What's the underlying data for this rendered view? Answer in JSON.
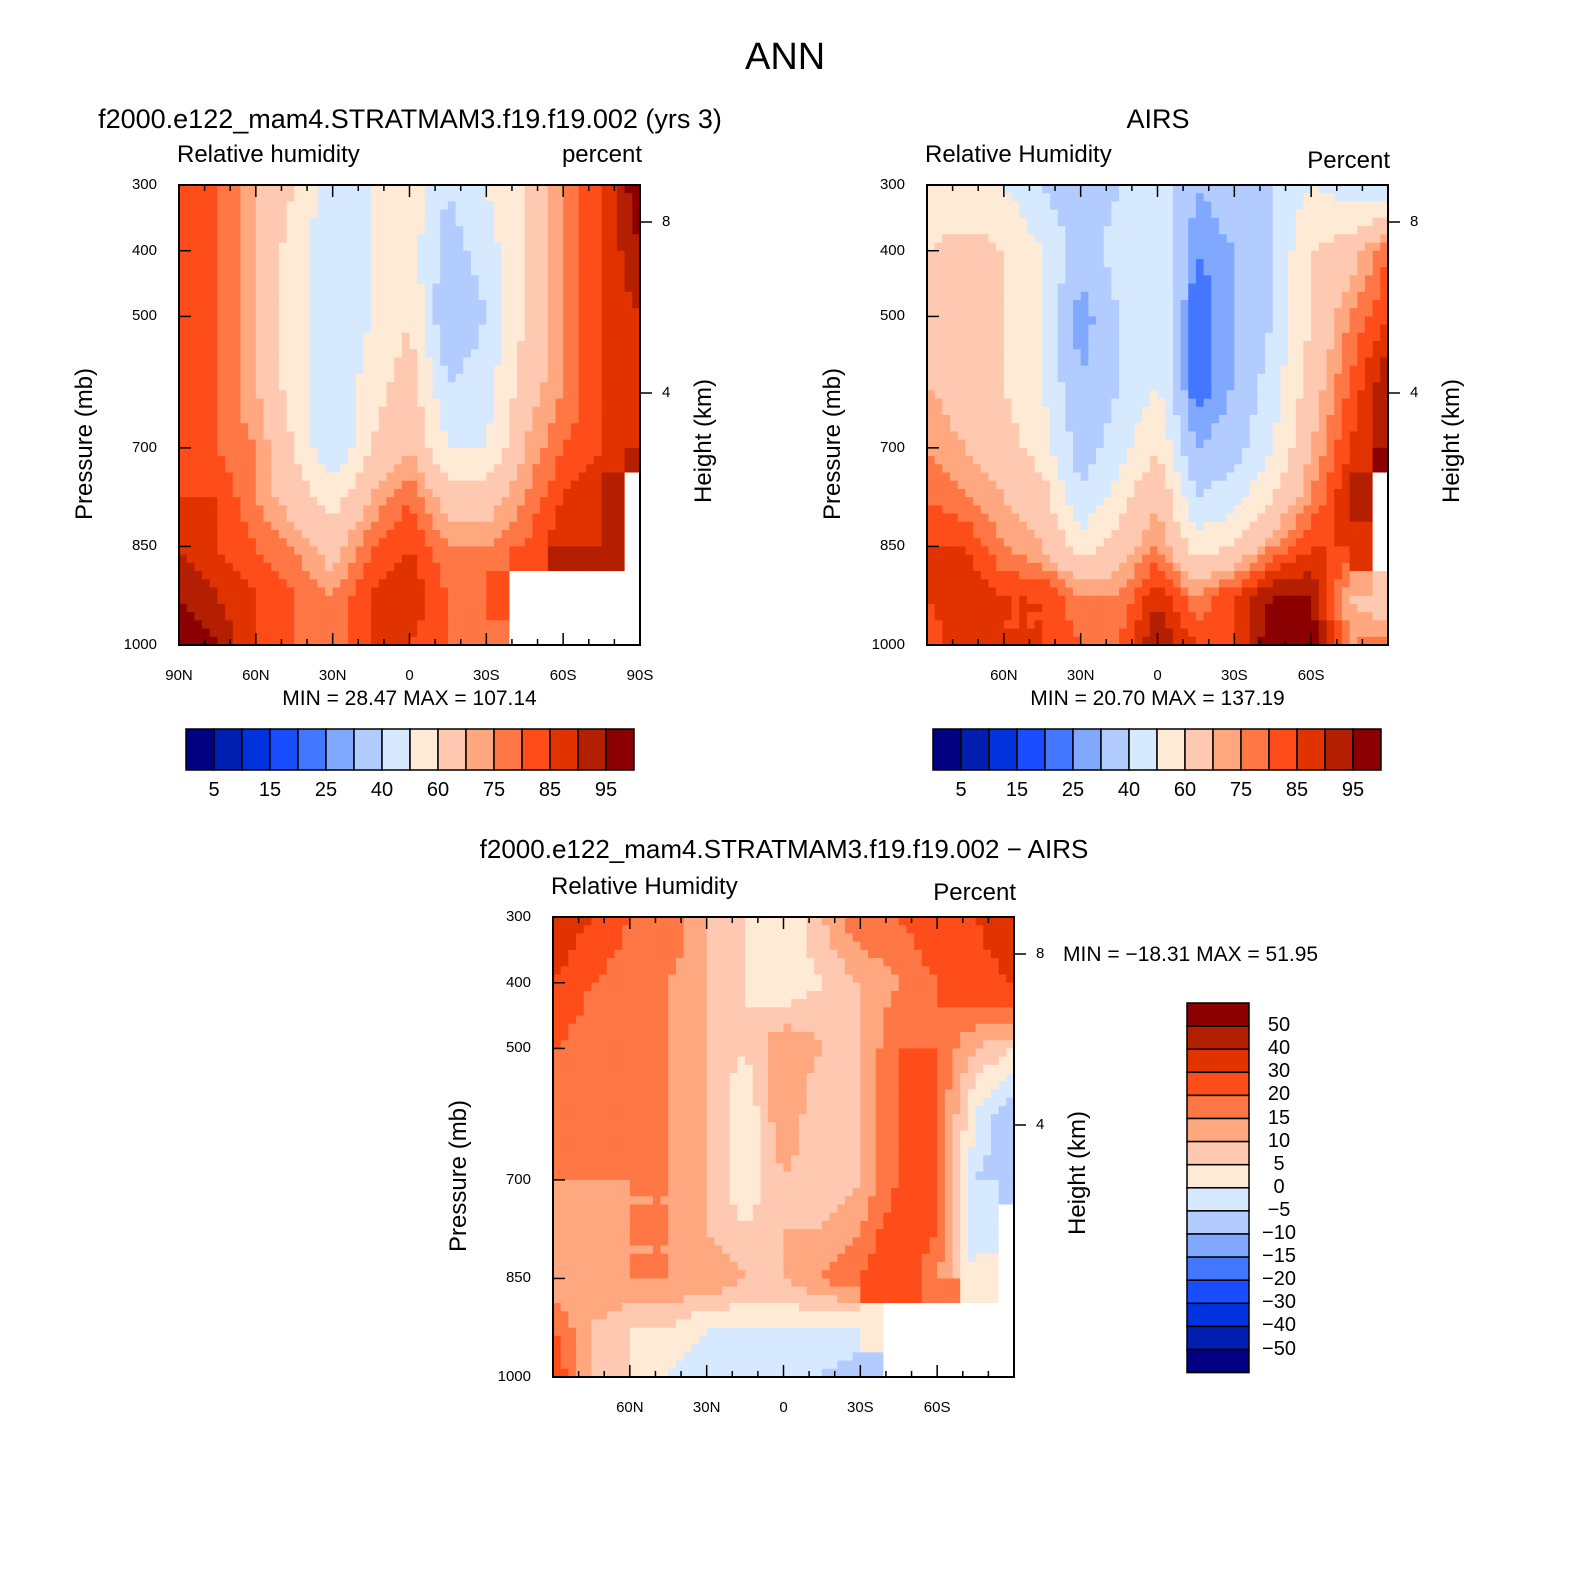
{
  "main_title": "ANN",
  "colors": {
    "abs_palette": [
      "#000080",
      "#001fb0",
      "#0033dd",
      "#1a4dff",
      "#4477ff",
      "#80a8ff",
      "#b3ccff",
      "#d6e9ff",
      "#ffead6",
      "#ffc8b0",
      "#ffa880",
      "#ff7744",
      "#ff4d1a",
      "#e03300",
      "#b31f00",
      "#8b0000"
    ],
    "missing": "#ffffff"
  },
  "chart_data": [
    {
      "type": "heatmap",
      "title": "f2000.e122_mam4.STRATMAM3.f19.f19.002 (yrs 3)",
      "left_label": "Relative humidity",
      "right_label": "percent",
      "ylabel": "Pressure (mb)",
      "ylabel_right": "Height (km)",
      "x": [
        90,
        75,
        60,
        45,
        30,
        15,
        0,
        -15,
        -30,
        -45,
        -60,
        -75,
        -90
      ],
      "y": [
        300,
        400,
        500,
        600,
        700,
        775,
        850,
        925,
        1000
      ],
      "xlim": [
        90,
        -90
      ],
      "ylim": [
        300,
        1000
      ],
      "xticks": [
        "90N",
        "60N",
        "30N",
        "0",
        "30S",
        "60S",
        "90S"
      ],
      "yticks": [
        "300",
        "400",
        "500",
        "700",
        "850",
        "1000"
      ],
      "rticks": [
        "8",
        "4"
      ],
      "min_label": "MIN =   28.47   MAX = 107.14",
      "levels": [
        5,
        10,
        15,
        20,
        25,
        30,
        40,
        50,
        60,
        70,
        75,
        80,
        85,
        90,
        95
      ],
      "colorbar_labels": [
        "5",
        "15",
        "25",
        "40",
        "60",
        "75",
        "85",
        "95"
      ],
      "z": [
        [
          85,
          80,
          70,
          60,
          45,
          50,
          60,
          40,
          50,
          60,
          75,
          85,
          100
        ],
        [
          85,
          80,
          70,
          55,
          40,
          50,
          55,
          35,
          45,
          60,
          75,
          85,
          95
        ],
        [
          85,
          80,
          70,
          55,
          40,
          50,
          60,
          30,
          40,
          60,
          75,
          85,
          90
        ],
        [
          85,
          80,
          70,
          55,
          40,
          55,
          65,
          40,
          45,
          65,
          75,
          85,
          90
        ],
        [
          85,
          80,
          75,
          60,
          40,
          60,
          70,
          50,
          50,
          70,
          80,
          85,
          90
        ],
        [
          85,
          85,
          75,
          65,
          55,
          70,
          80,
          65,
          65,
          75,
          85,
          90,
          null
        ],
        [
          90,
          85,
          80,
          75,
          65,
          80,
          85,
          75,
          75,
          80,
          90,
          90,
          null
        ],
        [
          95,
          90,
          85,
          80,
          75,
          85,
          90,
          80,
          80,
          null,
          null,
          null,
          null
        ],
        [
          100,
          95,
          85,
          80,
          75,
          85,
          85,
          80,
          75,
          null,
          null,
          null,
          null
        ]
      ]
    },
    {
      "type": "heatmap",
      "title": "AIRS",
      "left_label": "Relative Humidity",
      "right_label": "Percent",
      "ylabel": "Pressure (mb)",
      "ylabel_right": "Height (km)",
      "x": [
        90,
        75,
        60,
        45,
        30,
        15,
        0,
        -15,
        -30,
        -45,
        -60,
        -75,
        -90
      ],
      "y": [
        300,
        400,
        500,
        600,
        700,
        775,
        850,
        925,
        1000
      ],
      "xlim": [
        90,
        -90
      ],
      "ylim": [
        300,
        1000
      ],
      "xticks": [
        "",
        "60N",
        "30N",
        "0",
        "30S",
        "60S",
        ""
      ],
      "yticks": [
        "300",
        "400",
        "500",
        "700",
        "850",
        "1000"
      ],
      "rticks": [
        "8",
        "4"
      ],
      "min_label": "MIN =   20.70   MAX = 137.19",
      "levels": [
        5,
        10,
        15,
        20,
        25,
        30,
        40,
        50,
        60,
        70,
        75,
        80,
        85,
        90,
        95
      ],
      "colorbar_labels": [
        "5",
        "15",
        "25",
        "40",
        "60",
        "75",
        "85",
        "95"
      ],
      "z": [
        [
          50,
          50,
          50,
          40,
          30,
          40,
          50,
          30,
          35,
          40,
          50,
          45,
          40
        ],
        [
          60,
          65,
          60,
          50,
          35,
          45,
          50,
          25,
          30,
          40,
          60,
          65,
          80
        ],
        [
          70,
          65,
          60,
          50,
          25,
          40,
          50,
          20,
          30,
          40,
          60,
          75,
          85
        ],
        [
          70,
          65,
          60,
          50,
          30,
          40,
          50,
          20,
          30,
          45,
          65,
          80,
          95
        ],
        [
          75,
          70,
          65,
          55,
          35,
          45,
          60,
          30,
          35,
          50,
          70,
          85,
          95
        ],
        [
          80,
          75,
          70,
          65,
          40,
          55,
          70,
          40,
          45,
          60,
          75,
          90,
          null
        ],
        [
          85,
          85,
          75,
          70,
          55,
          65,
          75,
          55,
          60,
          75,
          85,
          85,
          null
        ],
        [
          85,
          90,
          85,
          85,
          75,
          75,
          90,
          75,
          85,
          95,
          95,
          70,
          60
        ],
        [
          80,
          90,
          85,
          85,
          80,
          80,
          95,
          85,
          85,
          100,
          100,
          75,
          80
        ]
      ]
    },
    {
      "type": "heatmap",
      "title": "f2000.e122_mam4.STRATMAM3.f19.f19.002 − AIRS",
      "left_label": "Relative Humidity",
      "right_label": "Percent",
      "ylabel": "Pressure (mb)",
      "ylabel_right": "Height (km)",
      "x": [
        90,
        75,
        60,
        45,
        30,
        15,
        0,
        -15,
        -30,
        -45,
        -60,
        -75,
        -90
      ],
      "y": [
        300,
        400,
        500,
        600,
        700,
        775,
        850,
        925,
        1000
      ],
      "xlim": [
        90,
        -90
      ],
      "ylim": [
        300,
        1000
      ],
      "xticks": [
        "",
        "60N",
        "30N",
        "0",
        "30S",
        "60S",
        ""
      ],
      "yticks": [
        "300",
        "400",
        "500",
        "700",
        "850",
        "1000"
      ],
      "rticks": [
        "8",
        "4"
      ],
      "min_label": "MIN = −18.31   MAX =   51.95",
      "levels": [
        -50,
        -40,
        -30,
        -20,
        -15,
        -10,
        -5,
        0,
        5,
        10,
        15,
        20,
        30,
        40,
        50
      ],
      "colorbar_labels": [
        "50",
        "40",
        "30",
        "20",
        "15",
        "10",
        "5",
        "0",
        "−5",
        "−10",
        "−15",
        "−20",
        "−30",
        "−40",
        "−50"
      ],
      "z": [
        [
          40,
          30,
          20,
          20,
          10,
          5,
          0,
          10,
          20,
          20,
          25,
          30,
          40
        ],
        [
          30,
          20,
          15,
          15,
          10,
          5,
          0,
          5,
          10,
          15,
          20,
          25,
          30
        ],
        [
          20,
          15,
          15,
          15,
          10,
          5,
          15,
          10,
          10,
          20,
          20,
          10,
          5
        ],
        [
          15,
          15,
          15,
          15,
          10,
          0,
          15,
          5,
          10,
          20,
          20,
          0,
          -10
        ],
        [
          15,
          15,
          15,
          15,
          10,
          0,
          10,
          5,
          10,
          20,
          20,
          -5,
          -10
        ],
        [
          10,
          10,
          15,
          15,
          10,
          5,
          10,
          10,
          15,
          25,
          20,
          -5,
          null
        ],
        [
          10,
          15,
          15,
          15,
          15,
          10,
          10,
          15,
          20,
          25,
          15,
          0,
          null
        ],
        [
          20,
          10,
          5,
          5,
          0,
          0,
          0,
          0,
          0,
          null,
          null,
          null,
          null
        ],
        [
          25,
          10,
          5,
          0,
          -5,
          0,
          -5,
          -5,
          -10,
          null,
          null,
          null,
          null
        ]
      ]
    }
  ]
}
